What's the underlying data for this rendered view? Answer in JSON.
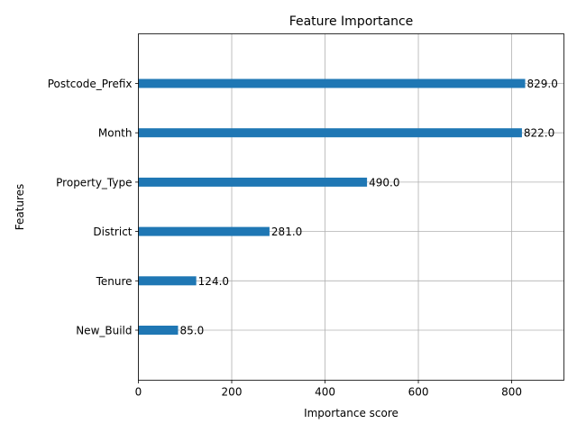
{
  "chart_data": {
    "type": "bar",
    "orientation": "horizontal",
    "title": "Feature Importance",
    "xlabel": "Importance score",
    "ylabel": "Features",
    "categories": [
      "Postcode_Prefix",
      "Month",
      "Property_Type",
      "District",
      "Tenure",
      "New_Build"
    ],
    "values": [
      829.0,
      822.0,
      490.0,
      281.0,
      124.0,
      85.0
    ],
    "data_labels": [
      "829.0",
      "822.0",
      "490.0",
      "281.0",
      "124.0",
      "85.0"
    ],
    "xlim": [
      0,
      912
    ],
    "xticks": [
      0,
      200,
      400,
      600,
      800
    ],
    "grid": true,
    "bar_color": "#1f77b4"
  }
}
